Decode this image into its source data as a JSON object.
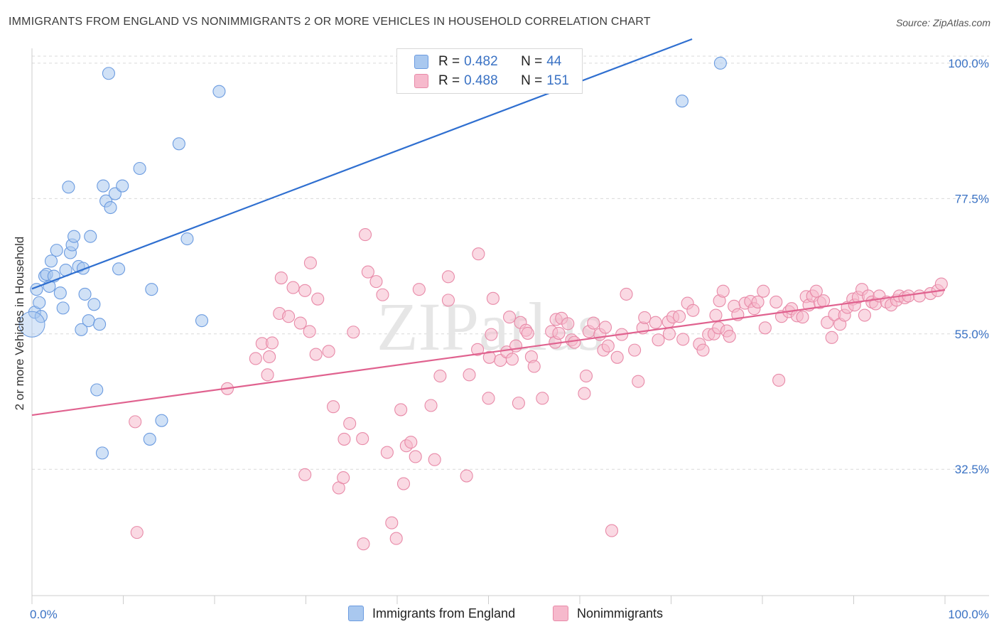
{
  "title": "IMMIGRANTS FROM ENGLAND VS NONIMMIGRANTS 2 OR MORE VEHICLES IN HOUSEHOLD CORRELATION CHART",
  "source": "Source: ZipAtlas.com",
  "watermark": "ZIPatlas",
  "stats": [
    {
      "r_label": "R =",
      "r_value": "0.482",
      "n_label": "N =",
      "n_value": "44"
    },
    {
      "r_label": "R =",
      "r_value": "0.488",
      "n_label": "N =",
      "n_value": "151"
    }
  ],
  "legend": [
    "Immigrants from England",
    "Nonimmigrants"
  ],
  "colors": {
    "blue_fill": "#a9c8ef",
    "blue_stroke": "#6b9be0",
    "blue_line": "#2f6fd0",
    "pink_fill": "#f6b9cc",
    "pink_stroke": "#e88aa8",
    "pink_line": "#e0628f",
    "tick_text": "#3a72c4",
    "grid": "#d9d9d9"
  },
  "chart_data": {
    "type": "scatter",
    "title": "IMMIGRANTS FROM ENGLAND VS NONIMMIGRANTS 2 OR MORE VEHICLES IN HOUSEHOLD CORRELATION CHART",
    "xlabel": "",
    "ylabel": "2 or more Vehicles in Household",
    "xlim": [
      0,
      100
    ],
    "ylim": [
      11.5,
      104
    ],
    "x_tick_labels": [
      "0.0%",
      "100.0%"
    ],
    "y_ticks": [
      32.5,
      55.0,
      77.5,
      100.0
    ],
    "y_tick_labels": [
      "32.5%",
      "55.0%",
      "77.5%",
      "100.0%"
    ],
    "grid": true,
    "series": [
      {
        "name": "Immigrants from England",
        "trend": {
          "x": [
            0,
            72.3
          ],
          "y": [
            62.5,
            104
          ]
        },
        "points": [
          [
            0.3,
            58.6
          ],
          [
            0.5,
            62.4
          ],
          [
            0.8,
            60.2
          ],
          [
            1.0,
            57.9
          ],
          [
            1.4,
            64.6
          ],
          [
            1.6,
            64.9
          ],
          [
            1.9,
            62.9
          ],
          [
            2.1,
            67.1
          ],
          [
            2.4,
            64.6
          ],
          [
            2.7,
            68.9
          ],
          [
            3.1,
            61.8
          ],
          [
            3.4,
            59.3
          ],
          [
            3.7,
            65.6
          ],
          [
            4.0,
            79.4
          ],
          [
            4.2,
            68.5
          ],
          [
            4.4,
            69.8
          ],
          [
            4.6,
            71.2
          ],
          [
            5.1,
            66.2
          ],
          [
            5.4,
            55.7
          ],
          [
            5.6,
            65.9
          ],
          [
            5.8,
            61.6
          ],
          [
            6.2,
            57.2
          ],
          [
            6.4,
            71.2
          ],
          [
            6.8,
            59.9
          ],
          [
            7.1,
            45.7
          ],
          [
            7.4,
            56.6
          ],
          [
            7.7,
            35.2
          ],
          [
            7.8,
            79.6
          ],
          [
            8.1,
            77.1
          ],
          [
            8.4,
            98.3
          ],
          [
            8.6,
            76.0
          ],
          [
            9.1,
            78.3
          ],
          [
            9.5,
            65.8
          ],
          [
            9.9,
            79.6
          ],
          [
            11.8,
            82.5
          ],
          [
            12.9,
            37.5
          ],
          [
            13.1,
            62.4
          ],
          [
            14.2,
            40.6
          ],
          [
            16.1,
            86.6
          ],
          [
            17.0,
            70.8
          ],
          [
            18.6,
            57.2
          ],
          [
            20.5,
            95.3
          ],
          [
            71.2,
            93.7
          ],
          [
            75.4,
            100.0
          ]
        ]
      },
      {
        "name": "Nonimmigrants",
        "trend": {
          "x": [
            0,
            100
          ],
          "y": [
            41.5,
            62.3
          ]
        },
        "points": [
          [
            11.3,
            40.4
          ],
          [
            11.5,
            22.0
          ],
          [
            21.4,
            45.9
          ],
          [
            24.5,
            50.9
          ],
          [
            25.2,
            53.4
          ],
          [
            25.8,
            48.2
          ],
          [
            26.0,
            51.2
          ],
          [
            26.3,
            53.5
          ],
          [
            27.1,
            58.4
          ],
          [
            27.3,
            64.3
          ],
          [
            28.1,
            57.9
          ],
          [
            28.6,
            62.7
          ],
          [
            29.4,
            56.8
          ],
          [
            29.9,
            31.6
          ],
          [
            29.9,
            62.2
          ],
          [
            30.4,
            55.4
          ],
          [
            30.5,
            66.8
          ],
          [
            31.1,
            51.6
          ],
          [
            31.3,
            60.8
          ],
          [
            32.5,
            52.1
          ],
          [
            33.0,
            42.9
          ],
          [
            33.6,
            29.4
          ],
          [
            34.1,
            31.1
          ],
          [
            34.2,
            37.5
          ],
          [
            34.8,
            40.1
          ],
          [
            35.2,
            55.3
          ],
          [
            36.2,
            37.6
          ],
          [
            36.3,
            20.1
          ],
          [
            36.5,
            71.5
          ],
          [
            36.8,
            65.3
          ],
          [
            37.7,
            63.7
          ],
          [
            38.4,
            61.5
          ],
          [
            38.9,
            35.3
          ],
          [
            39.4,
            23.6
          ],
          [
            39.9,
            21.0
          ],
          [
            40.4,
            42.4
          ],
          [
            40.7,
            30.1
          ],
          [
            41.0,
            36.4
          ],
          [
            41.5,
            37.0
          ],
          [
            42.0,
            34.6
          ],
          [
            42.4,
            62.4
          ],
          [
            43.7,
            43.1
          ],
          [
            44.1,
            34.1
          ],
          [
            44.7,
            48.0
          ],
          [
            45.6,
            64.5
          ],
          [
            45.6,
            60.6
          ],
          [
            47.6,
            31.4
          ],
          [
            47.9,
            48.2
          ],
          [
            48.8,
            52.4
          ],
          [
            48.9,
            68.3
          ],
          [
            50.0,
            44.3
          ],
          [
            50.1,
            51.1
          ],
          [
            50.3,
            54.9
          ],
          [
            50.5,
            60.9
          ],
          [
            51.3,
            50.6
          ],
          [
            52.0,
            52.0
          ],
          [
            52.3,
            57.8
          ],
          [
            52.6,
            50.8
          ],
          [
            53.0,
            53.0
          ],
          [
            53.3,
            43.5
          ],
          [
            53.5,
            56.9
          ],
          [
            54.1,
            55.6
          ],
          [
            54.3,
            55.1
          ],
          [
            54.7,
            51.2
          ],
          [
            55.0,
            49.6
          ],
          [
            55.9,
            44.3
          ],
          [
            56.9,
            55.4
          ],
          [
            57.3,
            53.6
          ],
          [
            57.4,
            57.4
          ],
          [
            57.7,
            55.1
          ],
          [
            58.0,
            57.6
          ],
          [
            58.7,
            56.7
          ],
          [
            59.1,
            54.0
          ],
          [
            59.4,
            53.6
          ],
          [
            60.5,
            45.1
          ],
          [
            60.7,
            48.0
          ],
          [
            61.0,
            55.4
          ],
          [
            61.5,
            56.8
          ],
          [
            62.2,
            54.9
          ],
          [
            62.8,
            56.1
          ],
          [
            62.6,
            52.3
          ],
          [
            63.1,
            53.0
          ],
          [
            63.5,
            22.3
          ],
          [
            64.1,
            51.1
          ],
          [
            64.6,
            54.9
          ],
          [
            65.1,
            61.6
          ],
          [
            66.0,
            52.3
          ],
          [
            66.4,
            47.1
          ],
          [
            66.9,
            56.0
          ],
          [
            67.1,
            57.7
          ],
          [
            68.3,
            56.9
          ],
          [
            68.6,
            54.0
          ],
          [
            69.7,
            57.0
          ],
          [
            69.8,
            55.0
          ],
          [
            70.2,
            57.8
          ],
          [
            70.9,
            57.9
          ],
          [
            71.3,
            54.1
          ],
          [
            71.8,
            60.1
          ],
          [
            72.4,
            58.9
          ],
          [
            73.1,
            53.3
          ],
          [
            73.5,
            52.3
          ],
          [
            74.1,
            54.9
          ],
          [
            74.7,
            55.0
          ],
          [
            74.9,
            58.1
          ],
          [
            75.2,
            56.0
          ],
          [
            75.3,
            60.5
          ],
          [
            75.7,
            62.1
          ],
          [
            76.1,
            55.5
          ],
          [
            76.4,
            54.6
          ],
          [
            76.9,
            59.6
          ],
          [
            77.3,
            58.2
          ],
          [
            78.1,
            60.1
          ],
          [
            78.7,
            60.4
          ],
          [
            79.1,
            59.2
          ],
          [
            79.5,
            60.3
          ],
          [
            80.1,
            62.1
          ],
          [
            80.3,
            56.0
          ],
          [
            81.5,
            60.3
          ],
          [
            81.8,
            47.3
          ],
          [
            82.1,
            57.9
          ],
          [
            82.9,
            58.7
          ],
          [
            83.2,
            59.2
          ],
          [
            83.8,
            58.0
          ],
          [
            84.4,
            57.8
          ],
          [
            84.8,
            61.2
          ],
          [
            85.1,
            59.8
          ],
          [
            85.5,
            61.3
          ],
          [
            85.9,
            62.1
          ],
          [
            86.3,
            60.2
          ],
          [
            86.7,
            60.5
          ],
          [
            87.1,
            56.9
          ],
          [
            87.6,
            54.4
          ],
          [
            87.9,
            58.2
          ],
          [
            88.5,
            56.6
          ],
          [
            89.0,
            58.1
          ],
          [
            89.3,
            59.4
          ],
          [
            89.9,
            60.8
          ],
          [
            90.1,
            59.8
          ],
          [
            90.5,
            61.1
          ],
          [
            90.9,
            62.4
          ],
          [
            91.2,
            58.1
          ],
          [
            91.6,
            61.3
          ],
          [
            92.0,
            60.3
          ],
          [
            92.4,
            60.0
          ],
          [
            92.8,
            61.3
          ],
          [
            93.6,
            60.3
          ],
          [
            94.1,
            59.8
          ],
          [
            94.7,
            60.6
          ],
          [
            95.0,
            61.3
          ],
          [
            95.6,
            61.0
          ],
          [
            96.0,
            61.3
          ],
          [
            97.2,
            61.3
          ],
          [
            98.4,
            61.7
          ],
          [
            99.2,
            62.2
          ],
          [
            99.6,
            63.3
          ]
        ]
      }
    ]
  }
}
